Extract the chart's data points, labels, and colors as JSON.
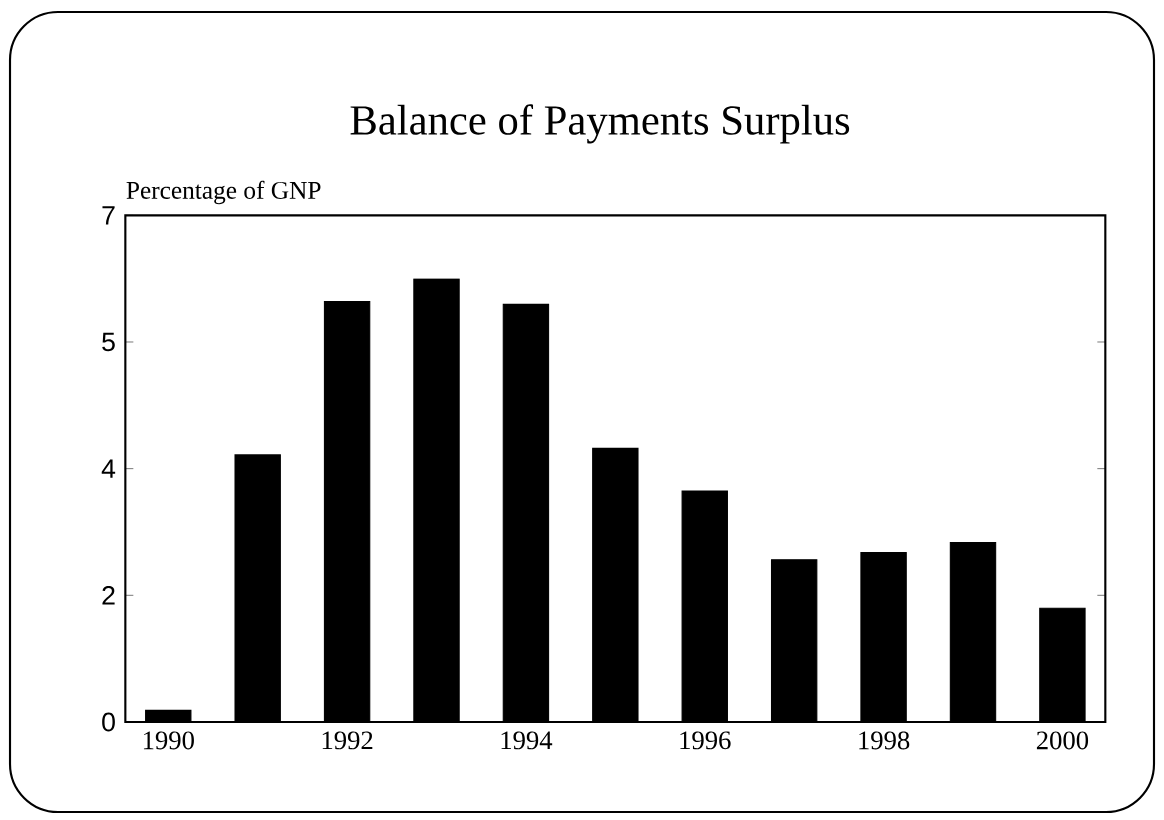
{
  "chart_data": {
    "type": "bar",
    "title": "Balance of Payments Surplus",
    "ylabel": "Percentage of GNP",
    "categories": [
      "1990",
      null,
      "1992",
      null,
      "1994",
      null,
      "1996",
      null,
      "1998",
      null,
      "2000"
    ],
    "values": [
      0.16,
      3.69,
      5.81,
      6.12,
      5.77,
      3.78,
      3.19,
      2.24,
      2.34,
      2.48,
      1.57
    ],
    "color": "#000000",
    "ylim": [
      0,
      7
    ],
    "yticks": [
      {
        "value": 0,
        "label": "0"
      },
      {
        "value": 1.75,
        "label": "2"
      },
      {
        "value": 3.5,
        "label": "4"
      },
      {
        "value": 5.25,
        "label": "5"
      },
      {
        "value": 7,
        "label": "7"
      }
    ]
  }
}
